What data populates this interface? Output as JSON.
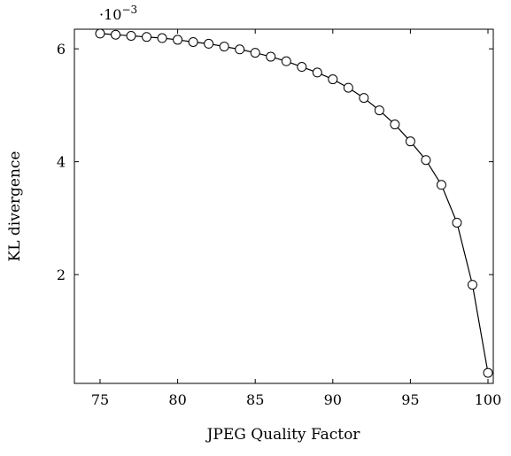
{
  "chart_data": {
    "type": "line",
    "xlabel": "JPEG Quality Factor",
    "ylabel": "KL divergence",
    "y_scale_base": "·10",
    "y_scale_exponent": "−3",
    "xlim": [
      75,
      100
    ],
    "ylim": [
      0.12,
      6.3
    ],
    "xticks": [
      75,
      80,
      85,
      90,
      95,
      100
    ],
    "yticks": [
      2,
      4,
      6
    ],
    "grid": false,
    "marker": "open-circle",
    "series": [
      {
        "x": [
          75,
          76,
          77,
          78,
          79,
          80,
          81,
          82,
          83,
          84,
          85,
          86,
          87,
          88,
          89,
          90,
          91,
          92,
          93,
          94,
          95,
          96,
          97,
          98,
          99,
          100
        ],
        "y": [
          6.27,
          6.25,
          6.23,
          6.21,
          6.19,
          6.16,
          6.12,
          6.09,
          6.04,
          5.99,
          5.93,
          5.86,
          5.78,
          5.68,
          5.58,
          5.46,
          5.31,
          5.13,
          4.91,
          4.66,
          4.36,
          4.03,
          3.59,
          2.92,
          1.82,
          0.26
        ]
      }
    ]
  }
}
